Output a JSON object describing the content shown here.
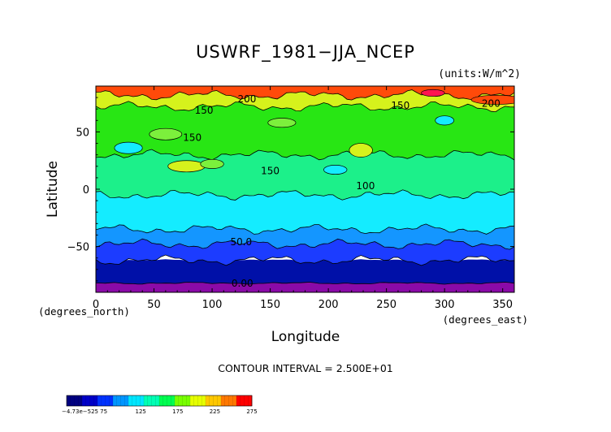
{
  "chart_data": {
    "type": "heatmap",
    "title": "USWRF_1981−JJA_NCEP",
    "units": "(units:W/m^2)",
    "xlabel": "Longitude",
    "ylabel": "Latitude",
    "x_unit": "(degrees_east)",
    "y_unit": "(degrees_north)",
    "xlim": [
      0,
      360
    ],
    "ylim": [
      -90,
      90
    ],
    "x_ticks": [
      0,
      50,
      100,
      150,
      200,
      250,
      300,
      350
    ],
    "y_ticks": [
      -50,
      0,
      50
    ],
    "contour_interval": "CONTOUR INTERVAL = 2.500E+01",
    "contour_labels": [
      {
        "text": "200",
        "lon": 130,
        "lat": 76
      },
      {
        "text": "150",
        "lon": 93,
        "lat": 66
      },
      {
        "text": "150",
        "lon": 83,
        "lat": 42
      },
      {
        "text": "150",
        "lon": 150,
        "lat": 13
      },
      {
        "text": "150",
        "lon": 262,
        "lat": 70
      },
      {
        "text": "200",
        "lon": 340,
        "lat": 72
      },
      {
        "text": "100",
        "lon": 232,
        "lat": 0
      },
      {
        "text": "50.0",
        "lon": 125,
        "lat": -49
      },
      {
        "text": "0.00",
        "lon": 126,
        "lat": -85
      }
    ],
    "bands": [
      {
        "lat_from": -90,
        "lat_to": -82,
        "value": 0
      },
      {
        "lat_from": -82,
        "lat_to": -62,
        "value": 25
      },
      {
        "lat_from": -62,
        "lat_to": -48,
        "value": 50
      },
      {
        "lat_from": -48,
        "lat_to": -35,
        "value": 75
      },
      {
        "lat_from": -35,
        "lat_to": -5,
        "value": 100
      },
      {
        "lat_from": -5,
        "lat_to": 30,
        "value": 125
      },
      {
        "lat_from": 30,
        "lat_to": 72,
        "value": 150
      },
      {
        "lat_from": 72,
        "lat_to": 82,
        "value": 200
      },
      {
        "lat_from": 82,
        "lat_to": 90,
        "value": 250
      }
    ],
    "colorbar": {
      "min_label": "−4.73e−525",
      "labels": [
        "−4.73e−525",
        "75",
        "125",
        "175",
        "225",
        "275"
      ],
      "colors": [
        "#000080",
        "#0000c8",
        "#0032ff",
        "#0096ff",
        "#00e6ff",
        "#00ffb4",
        "#00ff50",
        "#78ff00",
        "#e6ff00",
        "#ffc800",
        "#ff7800",
        "#ff0000"
      ]
    },
    "level_colors": {
      "0": "#8a0aa8",
      "25": "#0010a8",
      "50": "#1c3cff",
      "75": "#1496ff",
      "100": "#14ecff",
      "125": "#1cf08a",
      "150": "#28e614",
      "175": "#7cf03c",
      "200": "#d6f21c",
      "225": "#ffbe14",
      "250": "#ff4a0a",
      "275": "#ff1450"
    }
  }
}
